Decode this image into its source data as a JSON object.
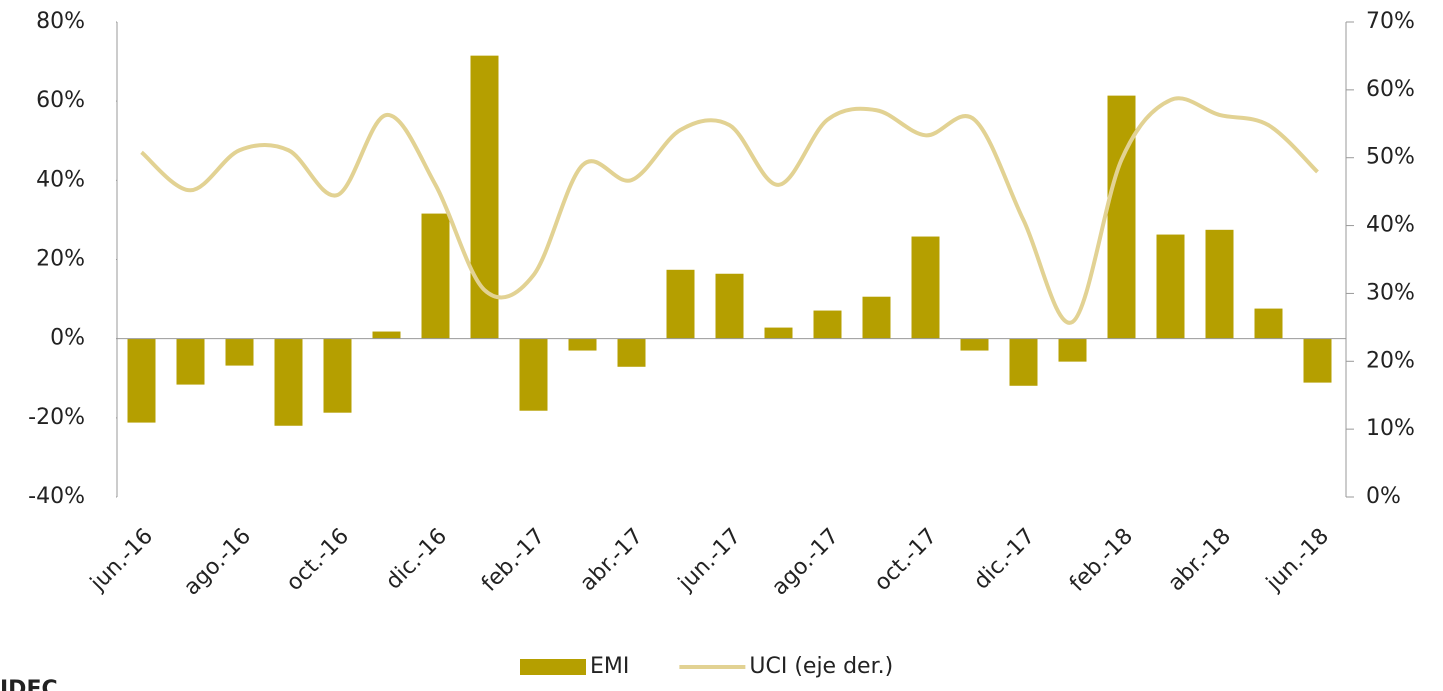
{
  "chart_data": {
    "type": "bar_line",
    "categories": [
      "jun.-16",
      null,
      "ago.-16",
      null,
      "oct.-16",
      null,
      "dic.-16",
      null,
      "feb.-17",
      null,
      "abr.-17",
      null,
      "jun.-17",
      null,
      "ago.-17",
      null,
      "oct.-17",
      null,
      "dic.-17",
      null,
      "feb.-18",
      null,
      "abr.-18",
      null,
      "jun.-18"
    ],
    "series": [
      {
        "name": "EMI",
        "type": "bar",
        "color": "#b59f00",
        "values": [
          -21.2,
          -11.6,
          -6.8,
          -22,
          -18.7,
          1.8,
          31.6,
          71.5,
          -18.2,
          -3.0,
          -7.1,
          17.4,
          16.4,
          2.8,
          7.1,
          10.6,
          25.8,
          -3.0,
          -11.9,
          -5.8,
          61.4,
          26.3,
          27.5,
          7.6,
          -11.1
        ]
      },
      {
        "name": "UCI (eje der.)",
        "type": "line",
        "axis": "y2",
        "color": "#e2d293",
        "values": [
          50.8,
          45.2,
          51.1,
          51.1,
          44.5,
          56.3,
          46.0,
          30.5,
          32.7,
          48.9,
          46.7,
          54.1,
          54.8,
          46.0,
          55.6,
          57.0,
          53.3,
          55.6,
          40.8,
          25.8,
          49.7,
          58.5,
          56.3,
          54.8,
          47.9
        ]
      }
    ],
    "ylim": [
      -40,
      80
    ],
    "yticks": [
      {
        "value": -40,
        "label": "-40%"
      },
      {
        "value": -20,
        "label": "-20%"
      },
      {
        "value": 0,
        "label": "0%"
      },
      {
        "value": 20,
        "label": "20%"
      },
      {
        "value": 40,
        "label": "40%"
      },
      {
        "value": 60,
        "label": "60%"
      },
      {
        "value": 80,
        "label": "80%"
      }
    ],
    "y2lim": [
      0,
      70
    ],
    "y2ticks": [
      {
        "value": 0,
        "label": "0%"
      },
      {
        "value": 10,
        "label": "10%"
      },
      {
        "value": 20,
        "label": "20%"
      },
      {
        "value": 30,
        "label": "30%"
      },
      {
        "value": 40,
        "label": "40%"
      },
      {
        "value": 50,
        "label": "50%"
      },
      {
        "value": 60,
        "label": "60%"
      },
      {
        "value": 70,
        "label": "70%"
      }
    ],
    "grid": false,
    "legend": "bottom",
    "source": "IDEC"
  }
}
